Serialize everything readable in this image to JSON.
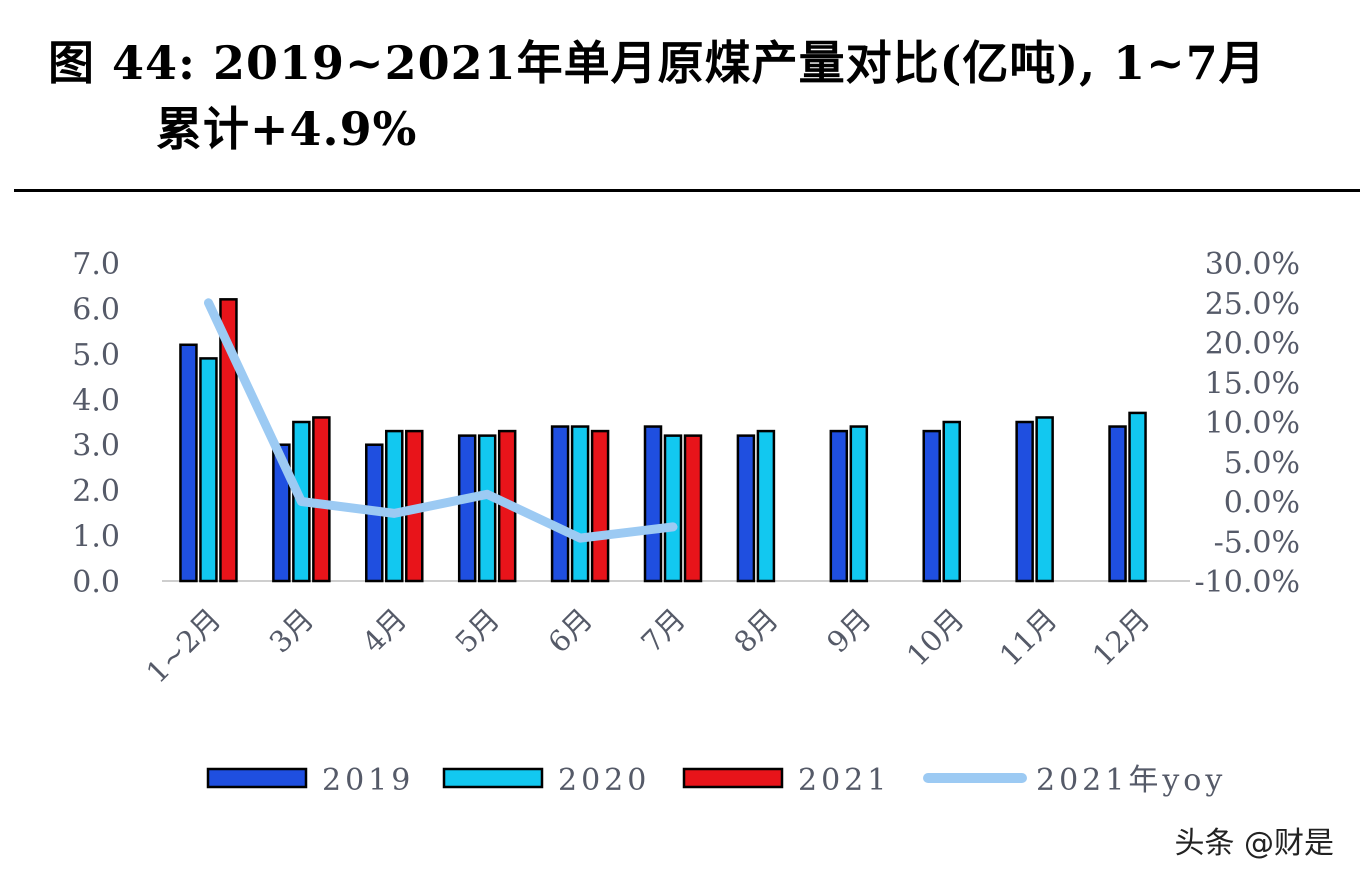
{
  "title_line1": "图  44: 2019~2021年单月原煤产量对比(亿吨), 1~7月",
  "title_line2": "累计+4.9%",
  "watermark": "头条 @财是",
  "chart_data": {
    "type": "bar",
    "categories": [
      "1~2月",
      "3月",
      "4月",
      "5月",
      "6月",
      "7月",
      "8月",
      "9月",
      "10月",
      "11月",
      "12月"
    ],
    "series": [
      {
        "name": "2019",
        "type": "bar",
        "color": "#1f4fe0",
        "values": [
          5.2,
          3.0,
          3.0,
          3.2,
          3.4,
          3.4,
          3.2,
          3.3,
          3.3,
          3.5,
          3.4
        ]
      },
      {
        "name": "2020",
        "type": "bar",
        "color": "#12c8f0",
        "values": [
          4.9,
          3.5,
          3.3,
          3.2,
          3.4,
          3.2,
          3.3,
          3.4,
          3.5,
          3.6,
          3.7
        ]
      },
      {
        "name": "2021",
        "type": "bar",
        "color": "#e8141a",
        "values": [
          6.2,
          3.6,
          3.3,
          3.3,
          3.3,
          3.2,
          null,
          null,
          null,
          null,
          null
        ]
      },
      {
        "name": "2021年yoy",
        "type": "line",
        "axis": "right",
        "color": "#9ccaf3",
        "values": [
          25.0,
          0.0,
          -1.5,
          0.9,
          -4.6,
          -3.2,
          null,
          null,
          null,
          null,
          null
        ]
      }
    ],
    "yticks_left": [
      "0.0",
      "1.0",
      "2.0",
      "3.0",
      "4.0",
      "5.0",
      "6.0",
      "7.0"
    ],
    "yticks_right": [
      "-10.0%",
      "-5.0%",
      "0.0%",
      "5.0%",
      "10.0%",
      "15.0%",
      "20.0%",
      "25.0%",
      "30.0%"
    ],
    "ylim": [
      0,
      7
    ],
    "ylim_right": [
      -10,
      30
    ],
    "legend_position": "bottom",
    "grid": false
  }
}
